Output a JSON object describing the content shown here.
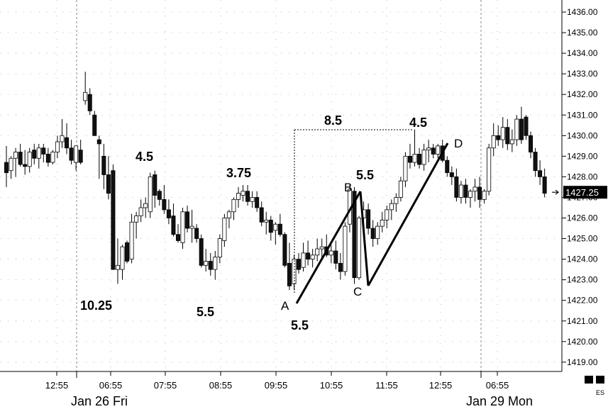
{
  "chart_data": {
    "type": "candlestick",
    "symbol": "ES",
    "y_axis": {
      "ticks": [
        "1419.00",
        "1420.00",
        "1421.00",
        "1422.00",
        "1423.00",
        "1424.00",
        "1425.00",
        "1426.00",
        "1427.00",
        "1428.00",
        "1429.00",
        "1430.00",
        "1431.00",
        "1432.00",
        "1433.00",
        "1434.00",
        "1435.00",
        "1436.00"
      ],
      "range": [
        1418.6,
        1436.2
      ],
      "position": "right"
    },
    "x_axis": {
      "time_labels": [
        "12:55",
        "06:55",
        "07:55",
        "08:55",
        "09:55",
        "10:55",
        "11:55",
        "12:55",
        "06:55"
      ],
      "date_labels": [
        "Jan 26 Fri",
        "Jan 29 Mon"
      ]
    },
    "last_price": "1427.25",
    "grid": "dotted",
    "series": [
      {
        "name": "ES",
        "ohlc": [
          [
            1428.7,
            1429.5,
            1427.5,
            1428.2
          ],
          [
            1428.3,
            1429.0,
            1427.9,
            1428.9
          ],
          [
            1428.9,
            1429.4,
            1428.0,
            1429.2
          ],
          [
            1429.2,
            1429.6,
            1428.5,
            1428.6
          ],
          [
            1428.6,
            1429.3,
            1428.1,
            1428.5
          ],
          [
            1428.5,
            1429.4,
            1428.2,
            1429.2
          ],
          [
            1429.3,
            1429.6,
            1428.6,
            1428.9
          ],
          [
            1428.9,
            1429.6,
            1428.4,
            1429.4
          ],
          [
            1429.4,
            1429.6,
            1428.7,
            1429.1
          ],
          [
            1429.1,
            1429.4,
            1428.5,
            1428.7
          ],
          [
            1428.7,
            1429.3,
            1428.6,
            1429.2
          ],
          [
            1429.2,
            1430.0,
            1428.9,
            1429.7
          ],
          [
            1429.7,
            1430.8,
            1429.4,
            1430.0
          ],
          [
            1429.9,
            1430.6,
            1429.1,
            1429.4
          ],
          [
            1429.4,
            1429.8,
            1428.6,
            1428.8
          ],
          [
            1428.7,
            1429.5,
            1428.3,
            1429.5
          ],
          [
            1429.3,
            1429.8,
            1428.6,
            1428.7
          ],
          [
            1431.7,
            1433.1,
            1431.5,
            1432.1
          ],
          [
            1432.0,
            1432.3,
            1431.0,
            1431.2
          ],
          [
            1431.0,
            1431.2,
            1430.0,
            1430.0
          ],
          [
            1429.8,
            1430.0,
            1427.9,
            1429.6
          ],
          [
            1429.0,
            1429.6,
            1427.4,
            1428.1
          ],
          [
            1428.1,
            1429.0,
            1426.9,
            1427.2
          ],
          [
            1428.3,
            1428.6,
            1423.5,
            1423.5
          ],
          [
            1423.5,
            1425.0,
            1422.8,
            1423.7
          ],
          [
            1423.5,
            1424.7,
            1423.0,
            1424.6
          ],
          [
            1424.8,
            1424.9,
            1423.8,
            1423.9
          ],
          [
            1424.0,
            1426.2,
            1423.8,
            1425.8
          ],
          [
            1425.8,
            1426.3,
            1425.0,
            1426.1
          ],
          [
            1426.1,
            1426.9,
            1425.8,
            1426.5
          ],
          [
            1426.5,
            1427.0,
            1426.0,
            1426.7
          ],
          [
            1426.3,
            1428.2,
            1426.0,
            1428.0
          ],
          [
            1428.1,
            1428.3,
            1426.5,
            1427.1
          ],
          [
            1427.3,
            1427.4,
            1426.6,
            1426.9
          ],
          [
            1426.9,
            1427.6,
            1426.2,
            1426.4
          ],
          [
            1426.4,
            1426.9,
            1425.7,
            1426.0
          ],
          [
            1426.1,
            1426.7,
            1425.1,
            1425.2
          ],
          [
            1425.2,
            1425.7,
            1424.8,
            1424.9
          ],
          [
            1424.8,
            1426.5,
            1424.5,
            1426.3
          ],
          [
            1426.3,
            1426.6,
            1425.3,
            1425.5
          ],
          [
            1425.5,
            1426.4,
            1424.8,
            1425.6
          ],
          [
            1425.5,
            1425.7,
            1424.8,
            1425.0
          ],
          [
            1425.0,
            1425.2,
            1423.6,
            1423.7
          ],
          [
            1423.7,
            1424.5,
            1423.4,
            1423.9
          ],
          [
            1423.9,
            1424.3,
            1423.2,
            1423.5
          ],
          [
            1423.5,
            1424.4,
            1423.0,
            1424.1
          ],
          [
            1424.1,
            1425.2,
            1423.8,
            1425.0
          ],
          [
            1424.9,
            1426.2,
            1424.6,
            1426.0
          ],
          [
            1426.0,
            1426.4,
            1425.5,
            1426.3
          ],
          [
            1426.3,
            1427.0,
            1425.9,
            1426.9
          ],
          [
            1426.9,
            1427.5,
            1426.5,
            1427.2
          ],
          [
            1427.1,
            1427.6,
            1426.8,
            1427.3
          ],
          [
            1427.3,
            1427.6,
            1426.6,
            1426.8
          ],
          [
            1426.8,
            1427.3,
            1426.5,
            1427.0
          ],
          [
            1427.0,
            1427.3,
            1426.3,
            1426.5
          ],
          [
            1426.5,
            1426.8,
            1425.6,
            1425.8
          ],
          [
            1425.8,
            1426.3,
            1425.2,
            1425.9
          ],
          [
            1425.9,
            1426.1,
            1424.9,
            1425.3
          ],
          [
            1425.4,
            1425.8,
            1424.7,
            1425.7
          ],
          [
            1425.7,
            1426.2,
            1425.1,
            1425.2
          ],
          [
            1425.2,
            1425.3,
            1423.6,
            1423.7
          ],
          [
            1423.8,
            1424.8,
            1422.5,
            1422.7
          ],
          [
            1422.8,
            1424.2,
            1422.5,
            1424.0
          ],
          [
            1424.0,
            1424.3,
            1423.3,
            1423.5
          ],
          [
            1423.6,
            1424.8,
            1423.4,
            1424.3
          ],
          [
            1424.3,
            1424.9,
            1423.7,
            1424.0
          ],
          [
            1424.0,
            1424.5,
            1423.6,
            1424.2
          ],
          [
            1424.2,
            1425.0,
            1423.9,
            1424.5
          ],
          [
            1424.5,
            1425.0,
            1424.0,
            1424.6
          ],
          [
            1424.6,
            1425.2,
            1424.1,
            1424.2
          ],
          [
            1424.2,
            1424.7,
            1423.8,
            1424.4
          ],
          [
            1424.4,
            1424.9,
            1423.5,
            1423.8
          ],
          [
            1423.8,
            1424.3,
            1423.0,
            1423.4
          ],
          [
            1423.4,
            1425.8,
            1423.2,
            1425.6
          ],
          [
            1425.7,
            1427.6,
            1425.3,
            1427.4
          ],
          [
            1427.3,
            1427.5,
            1422.8,
            1423.1
          ],
          [
            1423.1,
            1426.1,
            1423.0,
            1426.0
          ],
          [
            1426.0,
            1426.8,
            1425.6,
            1426.4
          ],
          [
            1426.4,
            1426.7,
            1425.2,
            1425.5
          ],
          [
            1425.5,
            1425.9,
            1424.6,
            1425.0
          ],
          [
            1425.0,
            1425.8,
            1424.7,
            1425.6
          ],
          [
            1425.6,
            1426.3,
            1425.3,
            1425.9
          ],
          [
            1425.9,
            1426.6,
            1425.5,
            1426.4
          ],
          [
            1426.4,
            1426.9,
            1425.9,
            1426.7
          ],
          [
            1426.7,
            1427.2,
            1426.3,
            1427.0
          ],
          [
            1427.0,
            1428.0,
            1426.8,
            1427.8
          ],
          [
            1427.8,
            1429.2,
            1427.5,
            1429.0
          ],
          [
            1429.0,
            1429.6,
            1428.4,
            1428.7
          ],
          [
            1428.7,
            1430.3,
            1428.5,
            1429.1
          ],
          [
            1429.1,
            1429.4,
            1428.4,
            1428.6
          ],
          [
            1428.6,
            1429.6,
            1428.3,
            1429.3
          ],
          [
            1429.3,
            1429.8,
            1428.7,
            1429.4
          ],
          [
            1429.4,
            1429.6,
            1428.9,
            1429.1
          ],
          [
            1429.1,
            1429.6,
            1428.9,
            1429.5
          ],
          [
            1429.5,
            1429.8,
            1428.7,
            1428.8
          ],
          [
            1428.8,
            1429.0,
            1428.0,
            1428.2
          ],
          [
            1428.2,
            1428.5,
            1427.6,
            1428.0
          ],
          [
            1428.0,
            1428.4,
            1426.8,
            1427.0
          ],
          [
            1427.0,
            1427.8,
            1426.7,
            1427.6
          ],
          [
            1427.6,
            1427.9,
            1426.7,
            1427.0
          ],
          [
            1427.0,
            1427.4,
            1426.5,
            1427.3
          ],
          [
            1427.3,
            1427.9,
            1426.8,
            1427.5
          ],
          [
            1427.5,
            1428.0,
            1426.5,
            1426.9
          ],
          [
            1426.9,
            1427.4,
            1426.7,
            1427.3
          ],
          [
            1427.3,
            1429.6,
            1427.1,
            1429.4
          ],
          [
            1429.4,
            1430.6,
            1429.0,
            1430.0
          ],
          [
            1430.0,
            1430.5,
            1429.5,
            1429.8
          ],
          [
            1429.8,
            1430.9,
            1429.4,
            1430.4
          ],
          [
            1430.4,
            1430.8,
            1429.3,
            1429.6
          ],
          [
            1429.6,
            1430.3,
            1429.2,
            1429.8
          ],
          [
            1429.8,
            1431.0,
            1429.5,
            1430.8
          ],
          [
            1430.8,
            1431.4,
            1429.6,
            1429.8
          ],
          [
            1430.9,
            1431.0,
            1429.8,
            1430.0
          ],
          [
            1430.0,
            1430.2,
            1428.9,
            1429.2
          ],
          [
            1429.2,
            1429.4,
            1428.0,
            1428.3
          ],
          [
            1428.3,
            1428.8,
            1427.6,
            1428.0
          ],
          [
            1428.0,
            1428.4,
            1427.0,
            1427.2
          ]
        ]
      }
    ],
    "annotations": {
      "labels": [
        "10.25",
        "4.5",
        "5.5",
        "3.75",
        "8.5",
        "5.5",
        "4.5",
        "5.5"
      ],
      "points": [
        "A",
        "B",
        "C",
        "D"
      ]
    }
  }
}
